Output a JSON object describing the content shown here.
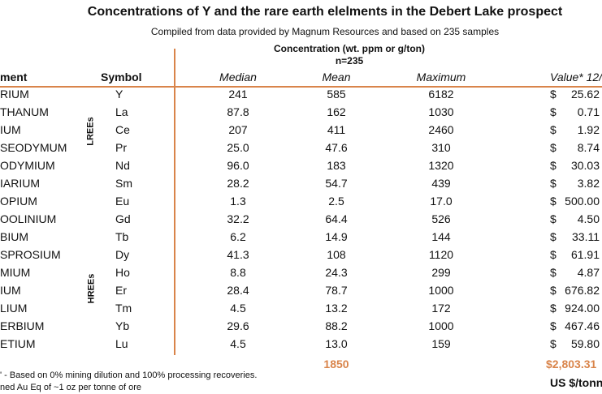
{
  "title": "Concentrations of Y and the rare earth elelments in the Debert Lake prospect",
  "subtitle": "Compiled from data provided by Magnum Resources and based on 235 samples",
  "concentration_header": "Concentration (wt. ppm or g/ton)",
  "n_label": "n=235",
  "columns": {
    "element": "ment",
    "symbol": "Symbol",
    "median": "Median",
    "mean": "Mean",
    "maximum": "Maximum",
    "value": "Value* 12/"
  },
  "groups": {
    "light": "LREEs",
    "heavy": "HREEs"
  },
  "rows": [
    {
      "element": "RIUM",
      "symbol": "Y",
      "median": "241",
      "mean": "585",
      "max": "6182",
      "cur": "$",
      "value": "25.62"
    },
    {
      "element": "THANUM",
      "symbol": "La",
      "median": "87.8",
      "mean": "162",
      "max": "1030",
      "cur": "$",
      "value": "0.71"
    },
    {
      "element": "IUM",
      "symbol": "Ce",
      "median": "207",
      "mean": "411",
      "max": "2460",
      "cur": "$",
      "value": "1.92"
    },
    {
      "element": "SEODYMUM",
      "symbol": "Pr",
      "median": "25.0",
      "mean": "47.6",
      "max": "310",
      "cur": "$",
      "value": "8.74"
    },
    {
      "element": "ODYMIUM",
      "symbol": "Nd",
      "median": "96.0",
      "mean": "183",
      "max": "1320",
      "cur": "$",
      "value": "30.03"
    },
    {
      "element": "IARIUM",
      "symbol": "Sm",
      "median": "28.2",
      "mean": "54.7",
      "max": "439",
      "cur": "$",
      "value": "3.82"
    },
    {
      "element": "OPIUM",
      "symbol": "Eu",
      "median": "1.3",
      "mean": "2.5",
      "max": "17.0",
      "cur": "$",
      "value": "500.00"
    },
    {
      "element": "OOLINIUM",
      "symbol": "Gd",
      "median": "32.2",
      "mean": "64.4",
      "max": "526",
      "cur": "$",
      "value": "4.50"
    },
    {
      "element": "BIUM",
      "symbol": "Tb",
      "median": "6.2",
      "mean": "14.9",
      "max": "144",
      "cur": "$",
      "value": "33.11"
    },
    {
      "element": "SPROSIUM",
      "symbol": "Dy",
      "median": "41.3",
      "mean": "108",
      "max": "1120",
      "cur": "$",
      "value": "61.91"
    },
    {
      "element": "MIUM",
      "symbol": "Ho",
      "median": "8.8",
      "mean": "24.3",
      "max": "299",
      "cur": "$",
      "value": "4.87"
    },
    {
      "element": "IUM",
      "symbol": "Er",
      "median": "28.4",
      "mean": "78.7",
      "max": "1000",
      "cur": "$",
      "value": "676.82"
    },
    {
      "element": "LIUM",
      "symbol": "Tm",
      "median": "4.5",
      "mean": "13.2",
      "max": "172",
      "cur": "$",
      "value": "924.00"
    },
    {
      "element": "ERBIUM",
      "symbol": "Yb",
      "median": "29.6",
      "mean": "88.2",
      "max": "1000",
      "cur": "$",
      "value": "467.46"
    },
    {
      "element": "ETIUM",
      "symbol": "Lu",
      "median": "4.5",
      "mean": "13.0",
      "max": "159",
      "cur": "$",
      "value": "59.80"
    }
  ],
  "totals": {
    "mean": "1850",
    "value": "$2,803.31",
    "unit": "US $/tonn"
  },
  "footnotes": [
    "' - Based on 0% mining dilution and 100% processing recoveries.",
    "ned Au Eq of ~1 oz per tonne of ore"
  ]
}
